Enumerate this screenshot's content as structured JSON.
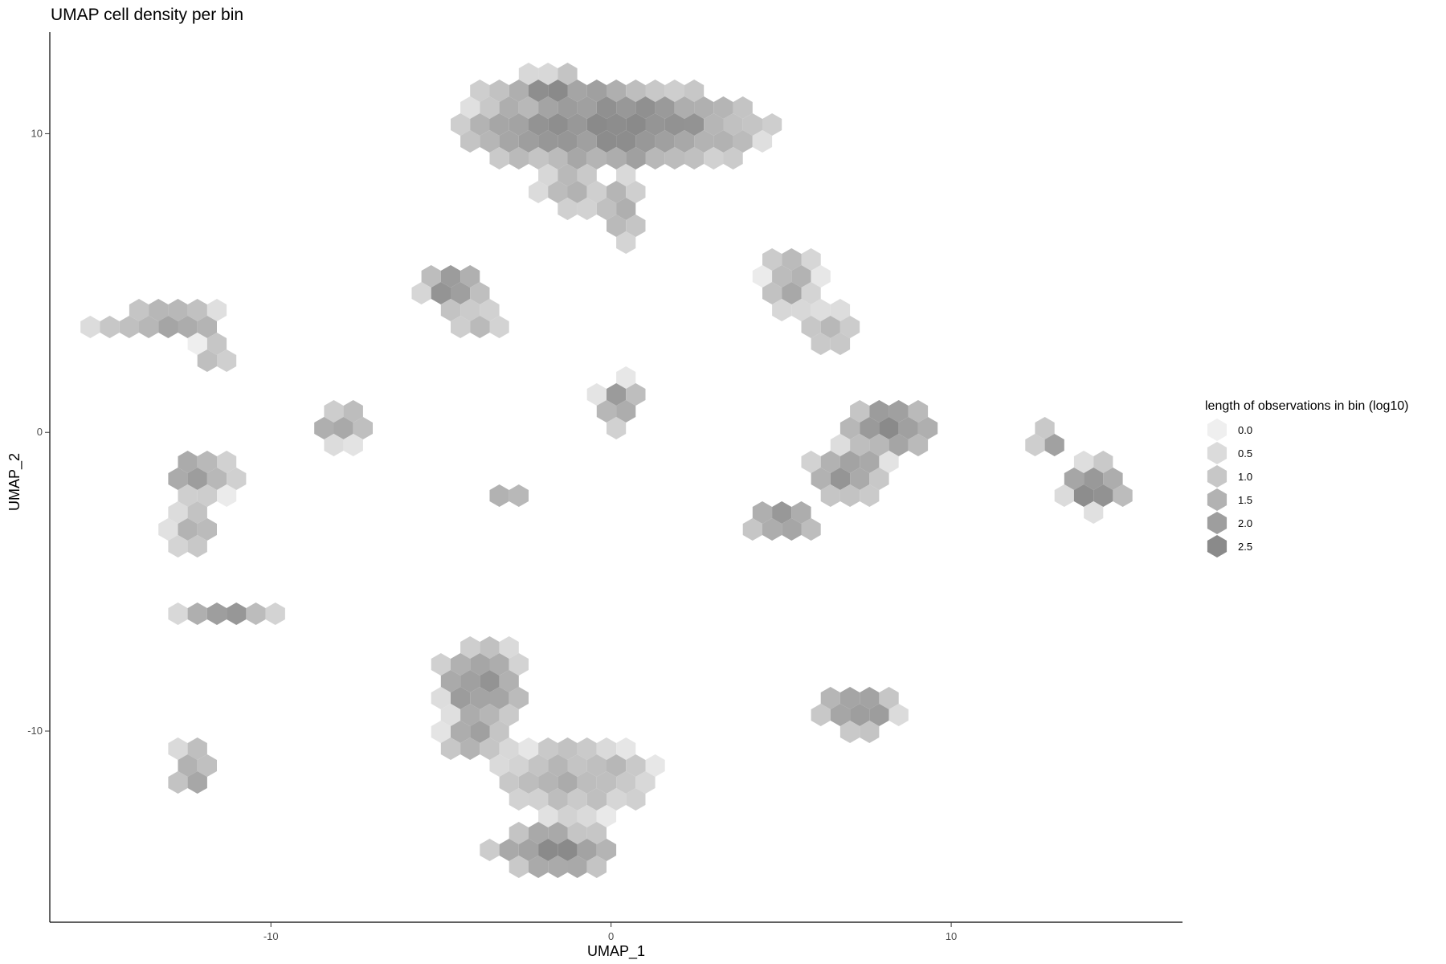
{
  "chart_data": {
    "type": "hexbin",
    "title": "UMAP cell density per bin",
    "xlabel": "UMAP_1",
    "ylabel": "UMAP_2",
    "xlim": [
      -16.5,
      16.8
    ],
    "ylim": [
      -16.4,
      13.4
    ],
    "x_ticks": [
      -10,
      0,
      10
    ],
    "y_ticks": [
      -10,
      0,
      10
    ],
    "grid": false,
    "legend": {
      "title": "length of observations in bin (log10)",
      "position": "right",
      "levels": [
        0.0,
        0.5,
        1.0,
        1.5,
        2.0,
        2.5
      ],
      "labels": [
        "0.0",
        "0.5",
        "1.0",
        "1.5",
        "2.0",
        "2.5"
      ],
      "color_low": "#efefef",
      "color_high": "#8a8a8a"
    },
    "clusters": [
      {
        "cx": 0.0,
        "cy": 10.2,
        "rx": 4.3,
        "ry": 1.4,
        "peak": 2.5
      },
      {
        "cx": -1.7,
        "cy": 11.3,
        "rx": 2.0,
        "ry": 0.7,
        "peak": 2.3
      },
      {
        "cx": -1.2,
        "cy": 8.3,
        "rx": 0.9,
        "ry": 0.9,
        "peak": 1.3
      },
      {
        "cx": 0.3,
        "cy": 7.4,
        "rx": 0.6,
        "ry": 1.2,
        "peak": 1.6
      },
      {
        "cx": -4.6,
        "cy": 4.8,
        "rx": 0.9,
        "ry": 0.8,
        "peak": 2.3
      },
      {
        "cx": -3.8,
        "cy": 3.7,
        "rx": 0.7,
        "ry": 0.5,
        "peak": 1.4
      },
      {
        "cx": -12.8,
        "cy": 3.8,
        "rx": 1.3,
        "ry": 0.6,
        "peak": 2.0
      },
      {
        "cx": -14.5,
        "cy": 3.4,
        "rx": 0.8,
        "ry": 0.3,
        "peak": 1.6
      },
      {
        "cx": -11.7,
        "cy": 2.6,
        "rx": 0.6,
        "ry": 0.5,
        "peak": 1.2
      },
      {
        "cx": 0.2,
        "cy": 1.0,
        "rx": 0.6,
        "ry": 0.8,
        "peak": 2.1
      },
      {
        "cx": -7.9,
        "cy": 0.2,
        "rx": 0.9,
        "ry": 0.6,
        "peak": 2.0
      },
      {
        "cx": -2.9,
        "cy": -2.0,
        "rx": 0.6,
        "ry": 0.4,
        "peak": 1.9
      },
      {
        "cx": 5.3,
        "cy": 5.0,
        "rx": 0.8,
        "ry": 1.2,
        "peak": 1.6
      },
      {
        "cx": 6.4,
        "cy": 3.4,
        "rx": 0.7,
        "ry": 0.8,
        "peak": 1.2
      },
      {
        "cx": 8.2,
        "cy": 0.2,
        "rx": 1.4,
        "ry": 0.9,
        "peak": 2.5
      },
      {
        "cx": 7.0,
        "cy": -1.4,
        "rx": 1.2,
        "ry": 0.9,
        "peak": 2.0
      },
      {
        "cx": 5.1,
        "cy": -3.0,
        "rx": 1.0,
        "ry": 0.6,
        "peak": 2.4
      },
      {
        "cx": 14.2,
        "cy": -1.8,
        "rx": 0.9,
        "ry": 0.8,
        "peak": 2.6
      },
      {
        "cx": 12.9,
        "cy": -0.3,
        "rx": 0.5,
        "ry": 0.5,
        "peak": 1.8
      },
      {
        "cx": -12.1,
        "cy": -1.5,
        "rx": 1.0,
        "ry": 0.8,
        "peak": 2.0
      },
      {
        "cx": -12.3,
        "cy": -3.3,
        "rx": 0.7,
        "ry": 0.8,
        "peak": 1.7
      },
      {
        "cx": -11.4,
        "cy": -6.0,
        "rx": 1.4,
        "ry": 0.4,
        "peak": 2.0
      },
      {
        "cx": -12.3,
        "cy": -11.3,
        "rx": 0.6,
        "ry": 0.9,
        "peak": 1.9
      },
      {
        "cx": -3.8,
        "cy": -8.4,
        "rx": 1.2,
        "ry": 1.4,
        "peak": 2.3
      },
      {
        "cx": -3.9,
        "cy": -10.1,
        "rx": 1.0,
        "ry": 0.9,
        "peak": 1.8
      },
      {
        "cx": -1.0,
        "cy": -11.6,
        "rx": 2.2,
        "ry": 1.2,
        "peak": 1.5
      },
      {
        "cx": -1.6,
        "cy": -14.0,
        "rx": 1.8,
        "ry": 0.8,
        "peak": 2.3
      },
      {
        "cx": 7.3,
        "cy": -9.3,
        "rx": 1.1,
        "ry": 0.8,
        "peak": 2.3
      }
    ]
  }
}
